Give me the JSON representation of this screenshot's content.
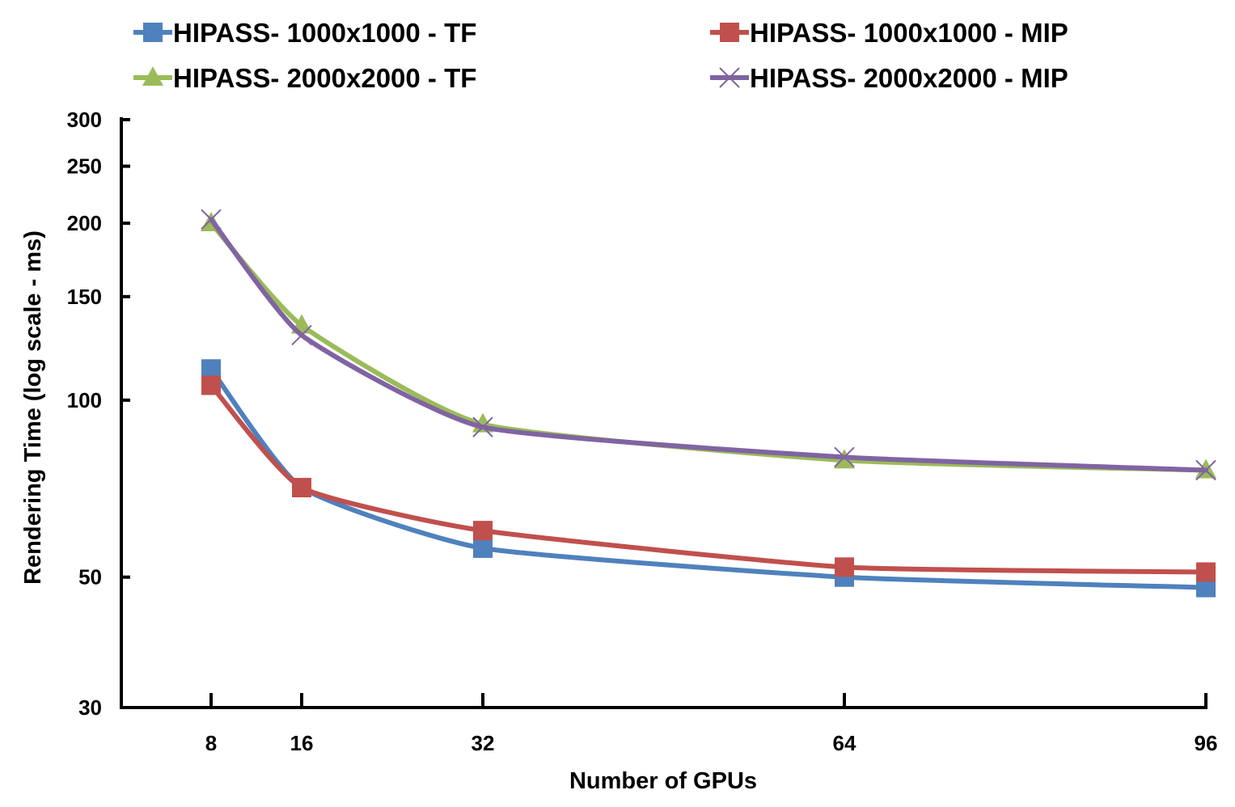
{
  "chart_data": {
    "type": "line",
    "title": "",
    "xlabel": "Number of GPUs",
    "ylabel": "Rendering Time (log  scale - ms)",
    "y_scale": "log",
    "ylim": [
      30,
      300
    ],
    "y_ticks": [
      30,
      50,
      100,
      150,
      200,
      250,
      300
    ],
    "x": [
      8,
      16,
      32,
      64,
      96
    ],
    "x_tick_labels": [
      "8",
      "16",
      "32",
      "64",
      "96"
    ],
    "legend_position": "top",
    "series": [
      {
        "name": "HIPASS- 1000x1000 - TF",
        "color": "#4f81bd",
        "marker": "square",
        "values": [
          113,
          71,
          56,
          50,
          48
        ]
      },
      {
        "name": "HIPASS- 1000x1000 - MIP",
        "color": "#c0504d",
        "marker": "square",
        "values": [
          106,
          71,
          60,
          52,
          51
        ]
      },
      {
        "name": "HIPASS- 2000x2000 - TF",
        "color": "#9bbb59",
        "marker": "triangle",
        "values": [
          200,
          134,
          91,
          79,
          76
        ]
      },
      {
        "name": "HIPASS- 2000x2000 - MIP",
        "color": "#8064a2",
        "marker": "x",
        "values": [
          203,
          129,
          90,
          80,
          76
        ]
      }
    ]
  }
}
